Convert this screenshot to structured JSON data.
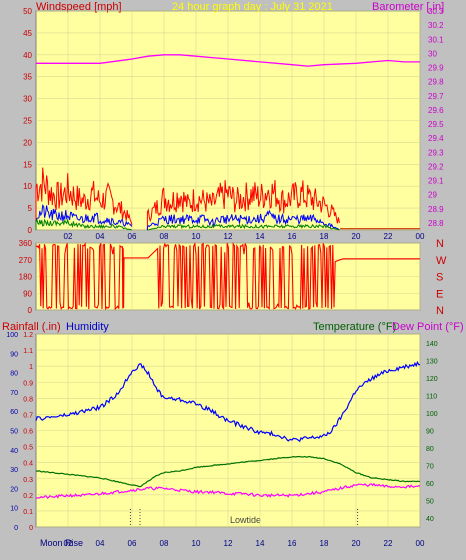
{
  "colors": {
    "panel_bg": "#ffffa0",
    "frame": "#c0c0c0",
    "wind": "#ff0000",
    "gust": "#ff0000",
    "wind_avg_blue": "#0000ff",
    "wind_low_green": "#008000",
    "barometer": "#ff00ff",
    "direction": "#ff0000",
    "humidity": "#0000ff",
    "temperature": "#007000",
    "dewpoint": "#ff00ff",
    "title": "#ffff00",
    "rain_label": "#cc0000",
    "humidity_label": "#0000cc",
    "temp_label": "#006000",
    "dew_label": "#ff00ff"
  },
  "chart_data": [
    {
      "type": "line",
      "panel": "wind_barometer",
      "title": "24 hour graph day : July 31 2021",
      "left_label": "Windspeed [mph]",
      "right_label": "Barometer [.in]",
      "left_ticks": [
        "0",
        "5",
        "10",
        "15",
        "20",
        "25",
        "30",
        "35",
        "40",
        "45",
        "50"
      ],
      "left_lim": [
        0,
        50
      ],
      "right_ticks": [
        "28.8",
        "28.9",
        "29",
        "29.1",
        "29.2",
        "29.3",
        "29.4",
        "29.5",
        "29.6",
        "29.7",
        "29.8",
        "29.9",
        "30",
        "30.1",
        "30.2",
        "30.3"
      ],
      "right_lim": [
        28.75,
        30.3
      ],
      "x_ticks": [
        "02",
        "04",
        "06",
        "08",
        "10",
        "12",
        "14",
        "16",
        "18",
        "20",
        "22",
        "00"
      ],
      "xlim": [
        0,
        24
      ],
      "series": [
        {
          "role": "barometer",
          "x": [
            0,
            2,
            4,
            6,
            7,
            8,
            9,
            10,
            11,
            12,
            14,
            16,
            17,
            18,
            20,
            22,
            23,
            24
          ],
          "y": [
            29.93,
            29.93,
            29.93,
            29.96,
            29.98,
            29.99,
            29.99,
            29.98,
            29.97,
            29.96,
            29.94,
            29.92,
            29.91,
            29.92,
            29.93,
            29.95,
            29.94,
            29.94
          ]
        },
        {
          "role": "gust_envelope",
          "x": [
            0,
            0.5,
            1,
            1.5,
            2,
            2.5,
            3,
            3.5,
            4,
            4.5,
            5,
            5.5,
            6,
            7,
            7.5,
            8,
            8.5,
            9,
            9.5,
            10,
            10.5,
            11,
            11.5,
            12,
            12.5,
            13,
            13.5,
            14,
            14.5,
            15,
            15.5,
            16,
            16.5,
            17,
            17.5,
            18,
            18.5,
            19
          ],
          "y": [
            12,
            13,
            10,
            9,
            11,
            9,
            8,
            10,
            8,
            9,
            7,
            5,
            2,
            4,
            6,
            9,
            8,
            10,
            7,
            9,
            8,
            7,
            9,
            10,
            8,
            9,
            10,
            9,
            11,
            10,
            8,
            9,
            10,
            9,
            8,
            7,
            5,
            2
          ]
        },
        {
          "role": "wind_average",
          "x": [
            0,
            0.5,
            1,
            1.5,
            2,
            2.5,
            3,
            3.5,
            4,
            4.5,
            5,
            5.5,
            6,
            7,
            7.5,
            8,
            8.5,
            9,
            9.5,
            10,
            10.5,
            11,
            11.5,
            12,
            12.5,
            13,
            13.5,
            14,
            14.5,
            15,
            15.5,
            16,
            16.5,
            17,
            17.5,
            18,
            18.5,
            19
          ],
          "y": [
            4,
            5,
            4,
            4,
            4,
            3,
            3,
            4,
            3,
            3,
            2,
            2,
            1,
            1,
            2,
            3,
            3,
            3,
            3,
            3,
            3,
            2,
            3,
            3,
            3,
            3,
            3,
            3,
            4,
            3,
            3,
            3,
            3,
            3,
            3,
            2,
            1,
            0
          ]
        },
        {
          "role": "wind_low",
          "x": [
            0,
            1,
            2,
            3,
            4,
            5,
            6,
            7,
            8,
            9,
            10,
            11,
            12,
            13,
            14,
            15,
            16,
            17,
            18,
            19
          ],
          "y": [
            2,
            2,
            2,
            1,
            1,
            1,
            0,
            0,
            1,
            1,
            1,
            1,
            1,
            1,
            1,
            1,
            1,
            1,
            1,
            0
          ]
        }
      ]
    },
    {
      "type": "line",
      "panel": "wind_direction",
      "left_ticks": [
        "0",
        "90",
        "180",
        "270",
        "360"
      ],
      "left_lim": [
        0,
        360
      ],
      "right_labels": [
        "N",
        "W",
        "S",
        "E",
        "N"
      ],
      "xlim": [
        0,
        24
      ],
      "series": [
        {
          "role": "direction",
          "x": [
            0,
            0.3,
            0.6,
            0.9,
            1.2,
            1.5,
            1.8,
            2.1,
            2.4,
            2.7,
            3.0,
            3.3,
            3.6,
            3.9,
            4.2,
            4.5,
            4.8,
            5.1,
            5.4,
            5.5,
            7.0,
            7.6,
            7.9,
            8.2,
            8.5,
            8.8,
            9.1,
            9.4,
            9.7,
            10.0,
            10.3,
            10.6,
            10.9,
            11.2,
            11.5,
            11.8,
            12.1,
            12.4,
            12.7,
            13.0,
            13.3,
            13.6,
            13.9,
            14.2,
            14.5,
            14.8,
            15.1,
            15.4,
            15.7,
            16.0,
            16.3,
            16.6,
            16.9,
            17.2,
            17.5,
            17.8,
            18.1,
            18.4,
            18.7,
            19.0,
            19.2,
            24
          ],
          "y": [
            340,
            20,
            330,
            10,
            350,
            40,
            300,
            15,
            335,
            25,
            345,
            5,
            320,
            30,
            350,
            10,
            300,
            20,
            340,
            280,
            280,
            330,
            40,
            350,
            20,
            320,
            10,
            340,
            60,
            300,
            20,
            330,
            15,
            350,
            30,
            310,
            20,
            345,
            10,
            300,
            40,
            330,
            20,
            350,
            15,
            320,
            30,
            340,
            10,
            300,
            25,
            350,
            20,
            330,
            40,
            310,
            15,
            345,
            260,
            270,
            275,
            275
          ]
        }
      ]
    },
    {
      "type": "line",
      "panel": "rain_humidity_temp",
      "labels": {
        "rainfall": "Rainfall (.in)",
        "humidity": "Humidity",
        "temperature": "Temperature (°F)",
        "dewpoint": "Dew Point (°F)"
      },
      "humidity_ticks": [
        "0",
        "10",
        "20",
        "30",
        "40",
        "50",
        "60",
        "70",
        "80",
        "90",
        "100"
      ],
      "humidity_lim": [
        0,
        100
      ],
      "rain_ticks": [
        "0",
        "0.1",
        "0.2",
        "0.3",
        "0.4",
        "0.5",
        "0.6",
        "0.7",
        "0.8",
        "0.9",
        "1",
        "1.1",
        "1.2"
      ],
      "rain_lim": [
        0,
        1.2
      ],
      "temp_ticks": [
        "40",
        "50",
        "60",
        "70",
        "80",
        "90",
        "100",
        "110",
        "120",
        "130",
        "140"
      ],
      "temp_lim": [
        35,
        145
      ],
      "x_ticks": [
        "02",
        "04",
        "06",
        "08",
        "10",
        "12",
        "14",
        "16",
        "18",
        "20",
        "22",
        "00"
      ],
      "xlim": [
        0,
        24
      ],
      "bottom_text": {
        "moon_rise": "Moon Rise",
        "low_tide": "Lowtide"
      },
      "markers_x": [
        5.9,
        6.5,
        20.1
      ],
      "series": [
        {
          "role": "humidity",
          "x": [
            0,
            1,
            2,
            3,
            4,
            5,
            5.5,
            6,
            6.5,
            7,
            7.5,
            8,
            9,
            10,
            11,
            12,
            13,
            14,
            15,
            16,
            17,
            18,
            18.5,
            19,
            19.5,
            20,
            21,
            22,
            23,
            24
          ],
          "y": [
            56,
            57,
            58,
            60,
            62,
            68,
            74,
            81,
            84,
            80,
            72,
            67,
            66,
            64,
            60,
            55,
            52,
            49,
            48,
            45,
            46,
            47,
            50,
            56,
            63,
            71,
            77,
            81,
            83,
            85
          ]
        },
        {
          "role": "temperature",
          "x": [
            0,
            1,
            2,
            3,
            4,
            5,
            6,
            6.5,
            7,
            7.5,
            8,
            9,
            10,
            11,
            12,
            13,
            14,
            15,
            16,
            17,
            18,
            19,
            20,
            21,
            22,
            23,
            24
          ],
          "y": [
            67,
            66,
            65,
            64,
            63,
            61,
            59,
            58,
            61,
            64,
            66,
            67,
            69,
            70,
            71,
            72,
            73,
            74,
            75,
            75,
            74,
            71,
            66,
            63,
            62,
            61,
            61
          ]
        },
        {
          "role": "dewpoint",
          "x": [
            0,
            1,
            2,
            3,
            4,
            5,
            6,
            7,
            8,
            9,
            10,
            11,
            12,
            13,
            14,
            15,
            16,
            17,
            18,
            19,
            20,
            21,
            22,
            23,
            24
          ],
          "y": [
            52,
            52,
            53,
            53,
            54,
            55,
            56,
            57,
            57,
            56,
            55,
            55,
            54,
            54,
            53,
            53,
            53,
            54,
            55,
            57,
            59,
            59,
            58,
            58,
            58
          ]
        }
      ]
    }
  ]
}
